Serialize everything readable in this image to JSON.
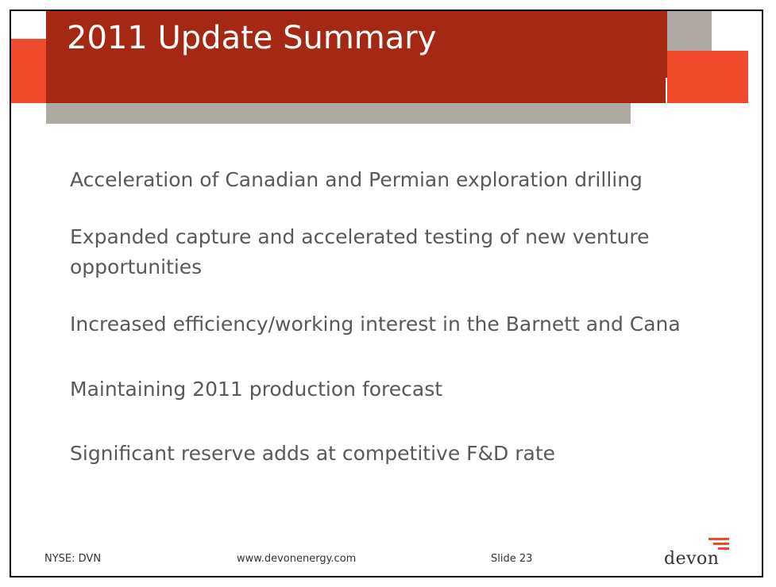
{
  "slide": {
    "title": "2011 Update Summary",
    "bullets": [
      "Acceleration of Canadian and Permian exploration drilling",
      "Expanded capture and accelerated testing of new venture opportunities",
      "Increased efficiency/working interest in the Barnett and Cana",
      "Maintaining 2011 production forecast",
      "Significant reserve adds at competitive F&D rate"
    ]
  },
  "footer": {
    "ticker": "NYSE: DVN",
    "website": "www.devonenergy.com",
    "slide_number": "Slide 23",
    "logo_text": "devon"
  },
  "colors": {
    "title_band": "#a52814",
    "accent_orange": "#ef4a2c",
    "accent_grey": "#aea9a3",
    "body_text": "#595959"
  },
  "icons": {
    "logo": "devon-logo-icon"
  }
}
